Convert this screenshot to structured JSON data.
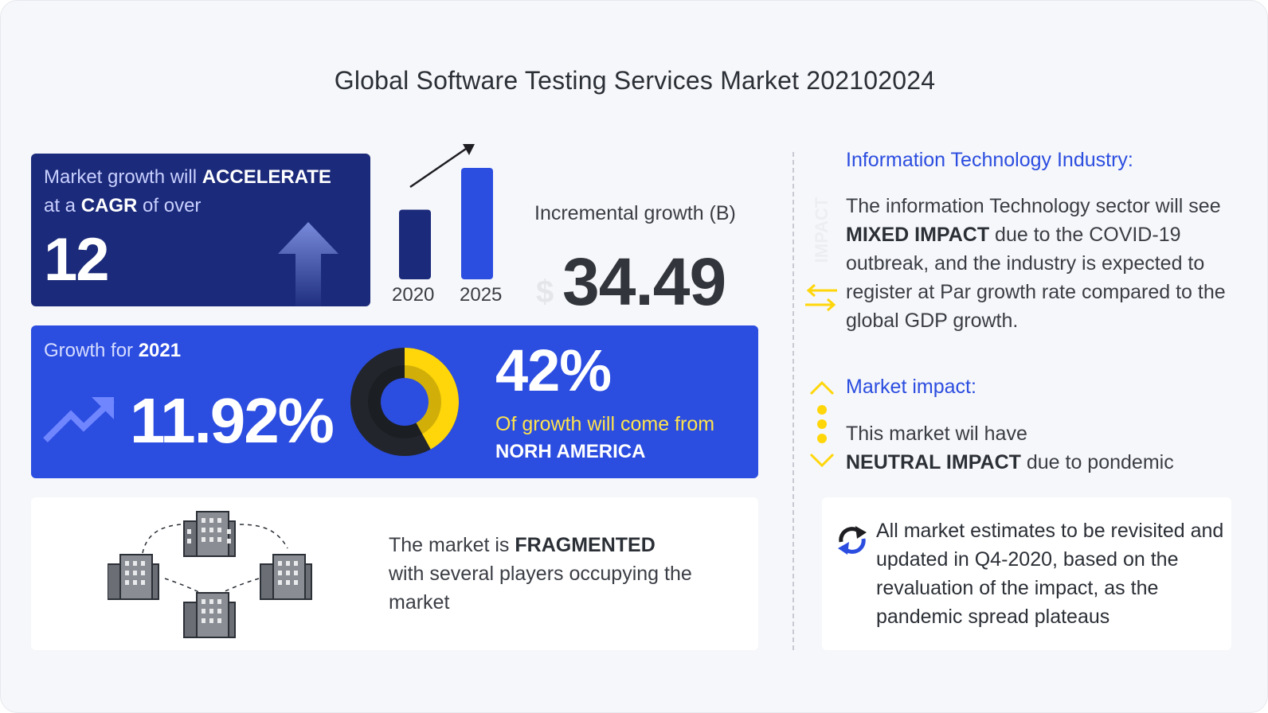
{
  "title": "Global Software Testing Services Market 202102024",
  "cagr_card": {
    "line1_prefix": "Market growth will ",
    "line1_bold": "ACCELERATE",
    "line2_prefix": "at a ",
    "line2_bold": "CAGR",
    "line2_suffix": " of over",
    "value": "12",
    "icon": "up-arrow-icon"
  },
  "incremental": {
    "chart_data": {
      "type": "bar",
      "categories": [
        "2020",
        "2025"
      ],
      "values": [
        1,
        1.6
      ],
      "colors": [
        "#1b2a7a",
        "#2b4de0"
      ]
    },
    "label": "Incremental growth (B)",
    "currency": "$",
    "value": "34.49",
    "icon": "trend-arrow-icon"
  },
  "growth_card": {
    "label_prefix": "Growth for ",
    "label_year": "2021",
    "value": "11.92%",
    "share_value": "42%",
    "share_text": "Of growth will come from",
    "share_region": "NORH AMERICA",
    "donut_share": 0.42,
    "colors": {
      "bg": "#2b4de0",
      "share": "#ffd60a",
      "rest": "#22252b"
    },
    "icon": "trending-up-icon"
  },
  "fragmented": {
    "text_prefix": "The market is ",
    "text_bold": "FRAGMENTED",
    "text_rest": "with several players occupying the market",
    "icon": "buildings-network-icon"
  },
  "impact_label": "IMPACT",
  "it_industry": {
    "title": "Information Technology Industry:",
    "text_part1": "The information Technology sector will see ",
    "text_bold": "MIXED IMPACT",
    "text_part2": " due to the COVID-19 outbreak, and the industry is expected to register at Par growth rate compared to the global GDP growth.",
    "icon": "swap-arrows-icon"
  },
  "market_impact": {
    "title": "Market impact:",
    "text_part1": "This market wil have ",
    "text_bold": "NEUTRAL IMPACT",
    "text_part2": " due to pondemic",
    "icon": "neutral-impact-icon"
  },
  "estimates": {
    "text": "All market estimates to be revisited and updated in Q4-2020, based on the revaluation of the impact, as the pandemic spread plateaus",
    "icon": "refresh-icon"
  },
  "colors": {
    "navy": "#1b2a7a",
    "blue": "#2b4de0",
    "yellow": "#ffd60a",
    "title_blue": "#2b4de0"
  }
}
